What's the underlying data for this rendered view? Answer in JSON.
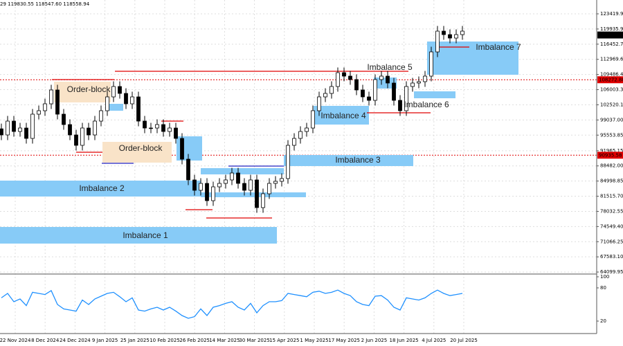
{
  "header_text": "29 119830.55 118547.60 118558.94",
  "chart_data": [
    {
      "type": "candlestick",
      "x_labels": [
        "22 Nov 2024",
        "8 Dec 2024",
        "24 Dec 2024",
        "9 Jan 2025",
        "25 Jan 2025",
        "10 Feb 2025",
        "26 Feb 2025",
        "14 Mar 2025",
        "30 Mar 2025",
        "15 Apr 2025",
        "1 May 2025",
        "17 May 2025",
        "2 Jun 2025",
        "18 Jun 2025",
        "4 Jul 2025",
        "20 Jul 2025"
      ],
      "open": [
        97000,
        95595,
        98775,
        96390,
        97185,
        94800,
        100365,
        101160,
        102750,
        105930,
        100365,
        97980,
        95595,
        93210,
        97185,
        95595,
        98775,
        101160,
        104340,
        106725,
        105135,
        102750,
        104340,
        98775,
        97185,
        97185,
        97980,
        96390,
        97185,
        94800,
        90030,
        85260,
        82875,
        84465,
        80490,
        83670,
        84465,
        85260,
        86850,
        84465,
        82875,
        85260,
        78900,
        82080,
        84465,
        84942,
        85578,
        93210,
        94800,
        96390,
        97185,
        101160,
        104340,
        105135,
        106725,
        109905,
        109110,
        108315,
        105930,
        104340,
        103545,
        108315,
        109110,
        107520,
        103545,
        101160,
        106725,
        107520,
        107838,
        109110,
        114675,
        119445,
        118650,
        117855,
        118650
      ],
      "high": [
        98200,
        99975,
        99975,
        98385,
        98385,
        101565,
        102360,
        103950,
        107130,
        107130,
        101565,
        99180,
        96795,
        98385,
        98385,
        99975,
        102360,
        105540,
        107925,
        107925,
        106335,
        105540,
        105540,
        99975,
        98385,
        99180,
        99180,
        98385,
        98385,
        96000,
        91230,
        86460,
        85665,
        85665,
        84870,
        85665,
        86460,
        88050,
        88050,
        85665,
        86460,
        86460,
        83280,
        85665,
        86142,
        86778,
        94410,
        96000,
        97590,
        98385,
        102360,
        105540,
        106335,
        107925,
        111105,
        111105,
        110310,
        109515,
        107130,
        105540,
        109515,
        110310,
        110310,
        108720,
        104745,
        107925,
        108720,
        109038,
        110310,
        115875,
        120645,
        120645,
        119850,
        119850,
        120645
      ],
      "low": [
        94395,
        94395,
        95190,
        95190,
        93600,
        93600,
        99165,
        99960,
        101550,
        99165,
        96780,
        94395,
        92010,
        92010,
        94395,
        94395,
        97575,
        99960,
        103140,
        103935,
        101550,
        101550,
        97575,
        95985,
        95985,
        95985,
        95190,
        95190,
        93600,
        88830,
        84060,
        81675,
        81675,
        79290,
        79290,
        82470,
        83265,
        84060,
        83265,
        81675,
        81675,
        77700,
        77700,
        80880,
        83265,
        83742,
        84378,
        92010,
        93600,
        95190,
        95985,
        99960,
        103140,
        103935,
        105525,
        107910,
        107115,
        104730,
        103140,
        102345,
        102345,
        107115,
        106320,
        102345,
        99960,
        99960,
        105525,
        106320,
        106638,
        107910,
        113475,
        117450,
        116655,
        116655,
        117450
      ],
      "close": [
        95595,
        98775,
        96390,
        97185,
        94800,
        100365,
        101160,
        102750,
        105930,
        100365,
        97980,
        95595,
        93210,
        97185,
        95595,
        98775,
        101160,
        104340,
        106725,
        105135,
        102750,
        104340,
        98775,
        97185,
        97185,
        97980,
        96390,
        97185,
        94800,
        90030,
        85260,
        82875,
        84465,
        80490,
        83670,
        84465,
        85260,
        86850,
        84465,
        82875,
        85260,
        78900,
        82080,
        84465,
        84942,
        85578,
        93210,
        94800,
        96390,
        97185,
        101160,
        104340,
        105135,
        106725,
        109905,
        109110,
        108315,
        105930,
        104340,
        103545,
        108315,
        109110,
        107520,
        103545,
        101160,
        106725,
        107520,
        107838,
        109110,
        114675,
        119445,
        118650,
        117855,
        118650,
        119445
      ],
      "ylim": [
        63795,
        126600
      ],
      "yticks": [
        123419.95,
        {
          "value": 119935.9,
          "label": "119935.90"
        },
        116452.75,
        {
          "value": 112969.6,
          "label": "112969.60"
        },
        109486.45,
        {
          "value": 106003.3,
          "label": "106003.30"
        },
        102520.15,
        {
          "value": 99037,
          "label": "99037.00"
        },
        95553.85,
        91965.15,
        {
          "value": 88482,
          "label": "88482.00"
        },
        84998.85,
        {
          "value": 81515.7,
          "label": "81515.70"
        },
        78032.55,
        {
          "value": 74549.4,
          "label": "74549.40"
        },
        71066.25,
        {
          "value": 67583.1,
          "label": "67583.10"
        },
        64099.95
      ],
      "grid": true,
      "levels": [
        {
          "value": 118558.94,
          "color": "#000000"
        },
        {
          "value": 108272.88,
          "color": "#e00000"
        },
        {
          "value": 90935.58,
          "color": "#e00000"
        }
      ],
      "annotations": [
        "Imbalance 1",
        "Imbalance 2",
        "Imbalance 3",
        "Imbalance 4",
        "Imbalance 5",
        "Imbalance 6",
        "Imbalance 7",
        "Order-block",
        "Order-block"
      ]
    },
    {
      "type": "line",
      "values": [
        62,
        70,
        55,
        60,
        48,
        72,
        70,
        68,
        75,
        50,
        42,
        40,
        38,
        58,
        50,
        60,
        65,
        70,
        72,
        64,
        55,
        62,
        40,
        38,
        42,
        45,
        40,
        45,
        38,
        30,
        25,
        28,
        42,
        30,
        45,
        48,
        52,
        55,
        45,
        40,
        52,
        35,
        48,
        55,
        55,
        57,
        70,
        68,
        66,
        64,
        72,
        74,
        70,
        72,
        76,
        70,
        66,
        55,
        50,
        48,
        65,
        66,
        58,
        45,
        40,
        62,
        60,
        58,
        62,
        70,
        76,
        70,
        66,
        68,
        70
      ],
      "color": "#1e90ff",
      "ylim": [
        0,
        100
      ],
      "yticks": [
        100,
        80,
        20
      ]
    }
  ]
}
